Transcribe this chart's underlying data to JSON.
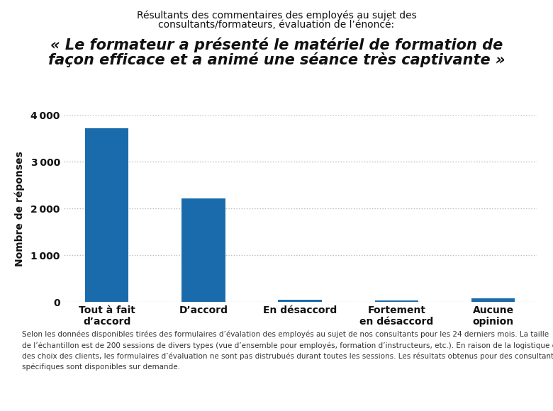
{
  "title_line1": "Résultants des commentaires des employés au sujet des",
  "title_line2": "consultants/formateurs, évaluation de l’énoncé:",
  "subtitle_line1": "« Le formateur a présenté le matériel de formation de",
  "subtitle_line2": "façon efficace et a animé une séance très captivante »",
  "categories": [
    "Tout à fait\nd’accord",
    "D’accord",
    "En désaccord",
    "Fortement\nen désaccord",
    "Aucune\nopinion"
  ],
  "values": [
    3720,
    2220,
    50,
    35,
    75
  ],
  "bar_color": "#1a6bab",
  "ylabel": "Nombre de réponses",
  "ylim": [
    0,
    4000
  ],
  "yticks": [
    0,
    1000,
    2000,
    3000,
    4000
  ],
  "footnote_line1": "Selon les données disponibles tirées des formulaires d’évalation des employés au sujet de nos consultants pour les 24 derniers mois. La taille",
  "footnote_line2": "de l’échantillon est de 200 sessions de divers types (vue d’ensemble pour employés, formation d’instructeurs, etc.). En raison de la logistique et",
  "footnote_line3": "des choix des clients, les formulaires d’évaluation ne sont pas distrubués durant toutes les sessions. Les résultats obtenus pour des consultants",
  "footnote_line4": "spécifiques sont disponibles sur demande.",
  "background_color": "#ffffff",
  "grid_color": "#bbbbbb",
  "title_fontsize": 10,
  "subtitle_fontsize": 15,
  "ylabel_fontsize": 10,
  "tick_fontsize": 10,
  "footnote_fontsize": 7.5
}
